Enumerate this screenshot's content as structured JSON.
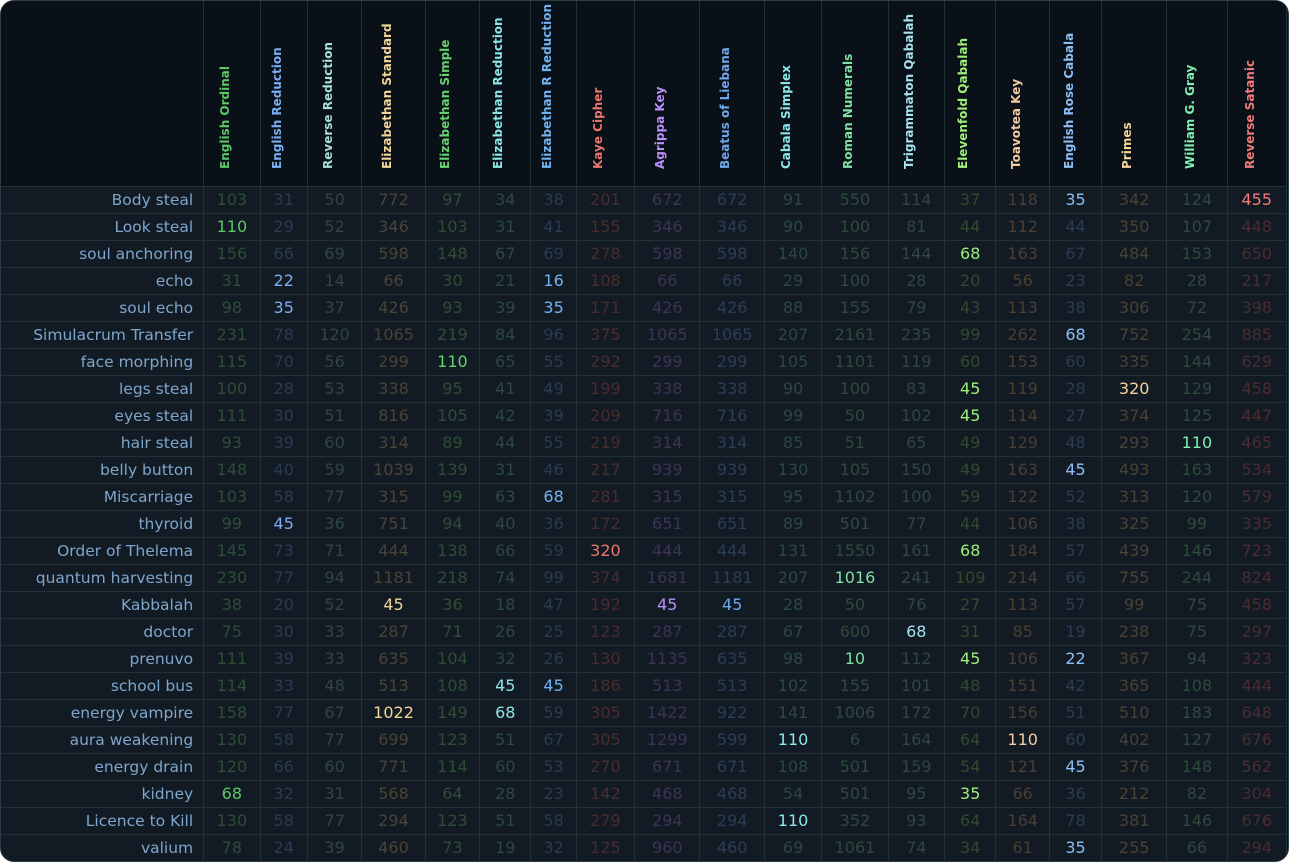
{
  "columns": [
    {
      "name": "English Ordinal",
      "color": "#5dc765",
      "dim": "#2e4e34"
    },
    {
      "name": "English Reduction",
      "color": "#79aef0",
      "dim": "#2a3b52"
    },
    {
      "name": "Reverse Reduction",
      "color": "#a8e0d4",
      "dim": "#2f4641"
    },
    {
      "name": "Elizabethan Standard",
      "color": "#f2d598",
      "dim": "#4a4434"
    },
    {
      "name": "Elizabethan Simple",
      "color": "#67d36e",
      "dim": "#2e4e34"
    },
    {
      "name": "Elizabethan Reduction",
      "color": "#8ce6e6",
      "dim": "#2b4749"
    },
    {
      "name": "Elizabethan R Reduction",
      "color": "#72b2f0",
      "dim": "#2a3b52"
    },
    {
      "name": "Kaye Cipher",
      "color": "#e8766e",
      "dim": "#4a2c2e"
    },
    {
      "name": "Agrippa Key",
      "color": "#b990f5",
      "dim": "#3c3354"
    },
    {
      "name": "Beatus of Liebana",
      "color": "#6fa7ea",
      "dim": "#2c3d56"
    },
    {
      "name": "Cabala Simplex",
      "color": "#8ce6ea",
      "dim": "#2b4749"
    },
    {
      "name": "Roman Numerals",
      "color": "#7fe0a4",
      "dim": "#2e4a3c"
    },
    {
      "name": "Trigrammaton Qabalah",
      "color": "#a6e2ee",
      "dim": "#2f4549"
    },
    {
      "name": "Elevenfold Qabalah",
      "color": "#9ef07a",
      "dim": "#334a2c"
    },
    {
      "name": "Toavotea Key",
      "color": "#f2cca0",
      "dim": "#4a3f32"
    },
    {
      "name": "English Rose Cabala",
      "color": "#8cc0f5",
      "dim": "#2b3d52"
    },
    {
      "name": "Primes",
      "color": "#f5d49a",
      "dim": "#4a4232"
    },
    {
      "name": "William G. Gray",
      "color": "#7ef0b0",
      "dim": "#2e4a3c"
    },
    {
      "name": "Reverse Satanic",
      "color": "#f27b7b",
      "dim": "#4a2c30"
    }
  ],
  "rows": [
    {
      "label": "Body steal",
      "values": [
        "103",
        "31",
        "50",
        "772",
        "97",
        "34",
        "38",
        "201",
        "672",
        "672",
        "91",
        "550",
        "114",
        "37",
        "118",
        "35",
        "342",
        "124",
        "455"
      ],
      "hl": [
        15,
        18
      ]
    },
    {
      "label": "Look steal",
      "values": [
        "110",
        "29",
        "52",
        "346",
        "103",
        "31",
        "41",
        "155",
        "346",
        "346",
        "90",
        "100",
        "81",
        "44",
        "112",
        "44",
        "350",
        "107",
        "448"
      ],
      "hl": [
        0
      ]
    },
    {
      "label": "soul anchoring",
      "values": [
        "156",
        "66",
        "69",
        "598",
        "148",
        "67",
        "69",
        "278",
        "598",
        "598",
        "140",
        "156",
        "144",
        "68",
        "163",
        "67",
        "484",
        "153",
        "650"
      ],
      "hl": [
        13
      ]
    },
    {
      "label": "echo",
      "values": [
        "31",
        "22",
        "14",
        "66",
        "30",
        "21",
        "16",
        "108",
        "66",
        "66",
        "29",
        "100",
        "28",
        "20",
        "56",
        "23",
        "82",
        "28",
        "217"
      ],
      "hl": [
        1,
        6
      ]
    },
    {
      "label": "soul echo",
      "values": [
        "98",
        "35",
        "37",
        "426",
        "93",
        "39",
        "35",
        "171",
        "426",
        "426",
        "88",
        "155",
        "79",
        "43",
        "113",
        "38",
        "306",
        "72",
        "398"
      ],
      "hl": [
        1,
        6
      ]
    },
    {
      "label": "Simulacrum Transfer",
      "values": [
        "231",
        "78",
        "120",
        "1065",
        "219",
        "84",
        "96",
        "375",
        "1065",
        "1065",
        "207",
        "2161",
        "235",
        "99",
        "262",
        "68",
        "752",
        "254",
        "885"
      ],
      "hl": [
        15
      ]
    },
    {
      "label": "face morphing",
      "values": [
        "115",
        "70",
        "56",
        "299",
        "110",
        "65",
        "55",
        "292",
        "299",
        "299",
        "105",
        "1101",
        "119",
        "60",
        "153",
        "60",
        "335",
        "144",
        "629"
      ],
      "hl": [
        4
      ]
    },
    {
      "label": "legs steal",
      "values": [
        "100",
        "28",
        "53",
        "338",
        "95",
        "41",
        "49",
        "199",
        "338",
        "338",
        "90",
        "100",
        "83",
        "45",
        "119",
        "28",
        "320",
        "129",
        "458"
      ],
      "hl": [
        13,
        16
      ]
    },
    {
      "label": "eyes steal",
      "values": [
        "111",
        "30",
        "51",
        "816",
        "105",
        "42",
        "39",
        "209",
        "716",
        "716",
        "99",
        "50",
        "102",
        "45",
        "114",
        "27",
        "374",
        "125",
        "447"
      ],
      "hl": [
        13
      ]
    },
    {
      "label": "hair steal",
      "values": [
        "93",
        "39",
        "60",
        "314",
        "89",
        "44",
        "55",
        "219",
        "314",
        "314",
        "85",
        "51",
        "65",
        "49",
        "129",
        "48",
        "293",
        "110",
        "465"
      ],
      "hl": [
        17
      ]
    },
    {
      "label": "belly button",
      "values": [
        "148",
        "40",
        "59",
        "1039",
        "139",
        "31",
        "46",
        "217",
        "939",
        "939",
        "130",
        "105",
        "150",
        "49",
        "163",
        "45",
        "493",
        "163",
        "534"
      ],
      "hl": [
        15
      ]
    },
    {
      "label": "Miscarriage",
      "values": [
        "103",
        "58",
        "77",
        "315",
        "99",
        "63",
        "68",
        "281",
        "315",
        "315",
        "95",
        "1102",
        "100",
        "59",
        "122",
        "52",
        "313",
        "120",
        "579"
      ],
      "hl": [
        6
      ]
    },
    {
      "label": "thyroid",
      "values": [
        "99",
        "45",
        "36",
        "751",
        "94",
        "40",
        "36",
        "172",
        "651",
        "651",
        "89",
        "501",
        "77",
        "44",
        "106",
        "38",
        "325",
        "99",
        "335"
      ],
      "hl": [
        1
      ]
    },
    {
      "label": "Order of Thelema",
      "values": [
        "145",
        "73",
        "71",
        "444",
        "138",
        "66",
        "59",
        "320",
        "444",
        "444",
        "131",
        "1550",
        "161",
        "68",
        "184",
        "57",
        "439",
        "146",
        "723"
      ],
      "hl": [
        7,
        13
      ]
    },
    {
      "label": "quantum harvesting",
      "values": [
        "230",
        "77",
        "94",
        "1181",
        "218",
        "74",
        "99",
        "374",
        "1681",
        "1181",
        "207",
        "1016",
        "241",
        "109",
        "214",
        "66",
        "755",
        "244",
        "824"
      ],
      "hl": [
        11
      ]
    },
    {
      "label": "Kabbalah",
      "values": [
        "38",
        "20",
        "52",
        "45",
        "36",
        "18",
        "47",
        "192",
        "45",
        "45",
        "28",
        "50",
        "76",
        "27",
        "113",
        "57",
        "99",
        "75",
        "458"
      ],
      "hl": [
        3,
        8,
        9
      ]
    },
    {
      "label": "doctor",
      "values": [
        "75",
        "30",
        "33",
        "287",
        "71",
        "26",
        "25",
        "123",
        "287",
        "287",
        "67",
        "600",
        "68",
        "31",
        "85",
        "19",
        "238",
        "75",
        "297"
      ],
      "hl": [
        12
      ]
    },
    {
      "label": "prenuvo",
      "values": [
        "111",
        "39",
        "33",
        "635",
        "104",
        "32",
        "26",
        "130",
        "1135",
        "635",
        "98",
        "10",
        "112",
        "45",
        "106",
        "22",
        "367",
        "94",
        "323"
      ],
      "hl": [
        11,
        13,
        15
      ]
    },
    {
      "label": "school bus",
      "values": [
        "114",
        "33",
        "48",
        "513",
        "108",
        "45",
        "45",
        "186",
        "513",
        "513",
        "102",
        "155",
        "101",
        "48",
        "151",
        "42",
        "365",
        "108",
        "444"
      ],
      "hl": [
        5,
        6
      ]
    },
    {
      "label": "energy vampire",
      "values": [
        "158",
        "77",
        "67",
        "1022",
        "149",
        "68",
        "59",
        "305",
        "1422",
        "922",
        "141",
        "1006",
        "172",
        "70",
        "156",
        "51",
        "510",
        "183",
        "648"
      ],
      "hl": [
        3,
        5
      ]
    },
    {
      "label": "aura weakening",
      "values": [
        "130",
        "58",
        "77",
        "699",
        "123",
        "51",
        "67",
        "305",
        "1299",
        "599",
        "110",
        "6",
        "164",
        "64",
        "110",
        "60",
        "402",
        "127",
        "676"
      ],
      "hl": [
        10,
        14
      ]
    },
    {
      "label": "energy drain",
      "values": [
        "120",
        "66",
        "60",
        "771",
        "114",
        "60",
        "53",
        "270",
        "671",
        "671",
        "108",
        "501",
        "159",
        "54",
        "121",
        "45",
        "376",
        "148",
        "562"
      ],
      "hl": [
        15
      ]
    },
    {
      "label": "kidney",
      "values": [
        "68",
        "32",
        "31",
        "568",
        "64",
        "28",
        "23",
        "142",
        "468",
        "468",
        "54",
        "501",
        "95",
        "35",
        "66",
        "36",
        "212",
        "82",
        "304"
      ],
      "hl": [
        0,
        13
      ]
    },
    {
      "label": "Licence to Kill",
      "values": [
        "130",
        "58",
        "77",
        "294",
        "123",
        "51",
        "58",
        "279",
        "294",
        "294",
        "110",
        "352",
        "93",
        "64",
        "164",
        "78",
        "381",
        "146",
        "676"
      ],
      "hl": [
        10
      ]
    },
    {
      "label": "valium",
      "values": [
        "78",
        "24",
        "39",
        "460",
        "73",
        "19",
        "32",
        "125",
        "960",
        "460",
        "69",
        "1061",
        "74",
        "34",
        "61",
        "35",
        "255",
        "66",
        "294"
      ],
      "hl": [
        15
      ]
    }
  ]
}
